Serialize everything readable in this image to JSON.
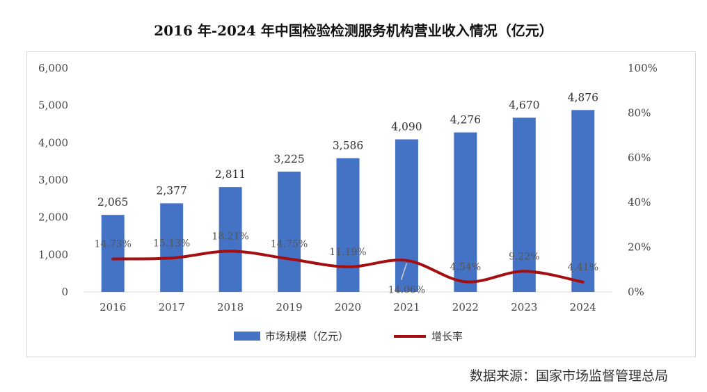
{
  "title": "2016 年-2024 年中国检验检测服务机构营业收入情况（亿元）",
  "source": "数据来源：国家市场监督管理总局",
  "chart_data": {
    "type": "bar",
    "title": "2016 年-2024 年中国检验检测服务机构营业收入情况（亿元）",
    "categories": [
      "2016",
      "2017",
      "2018",
      "2019",
      "2020",
      "2021",
      "2022",
      "2023",
      "2024"
    ],
    "series": [
      {
        "name": "市场规模（亿元）",
        "type": "bar",
        "axis": "left",
        "color": "#4472C4",
        "values": [
          2065,
          2377,
          2811,
          3225,
          3586,
          4090,
          4276,
          4670,
          4876
        ],
        "labels": [
          "2,065",
          "2,377",
          "2,811",
          "3,225",
          "3,586",
          "4,090",
          "4,276",
          "4,670",
          "4,876"
        ]
      },
      {
        "name": "增长率",
        "type": "line",
        "axis": "right",
        "color": "#A50E10",
        "values": [
          14.73,
          15.13,
          18.21,
          14.75,
          11.19,
          14.06,
          4.54,
          9.22,
          4.41
        ],
        "labels": [
          "14.73%",
          "15.13%",
          "18.21%",
          "14.75%",
          "11.19%",
          "14.06%",
          "4.54%",
          "9.22%",
          "4.41%"
        ]
      }
    ],
    "y_left": {
      "ylim": [
        0,
        6000
      ],
      "ticks": [
        "0",
        "1,000",
        "2,000",
        "3,000",
        "4,000",
        "5,000",
        "6,000"
      ]
    },
    "y_right": {
      "ylim": [
        0,
        100
      ],
      "ticks": [
        "0%",
        "20%",
        "40%",
        "60%",
        "80%",
        "100%"
      ]
    },
    "grid": false,
    "legend": "bottom"
  }
}
